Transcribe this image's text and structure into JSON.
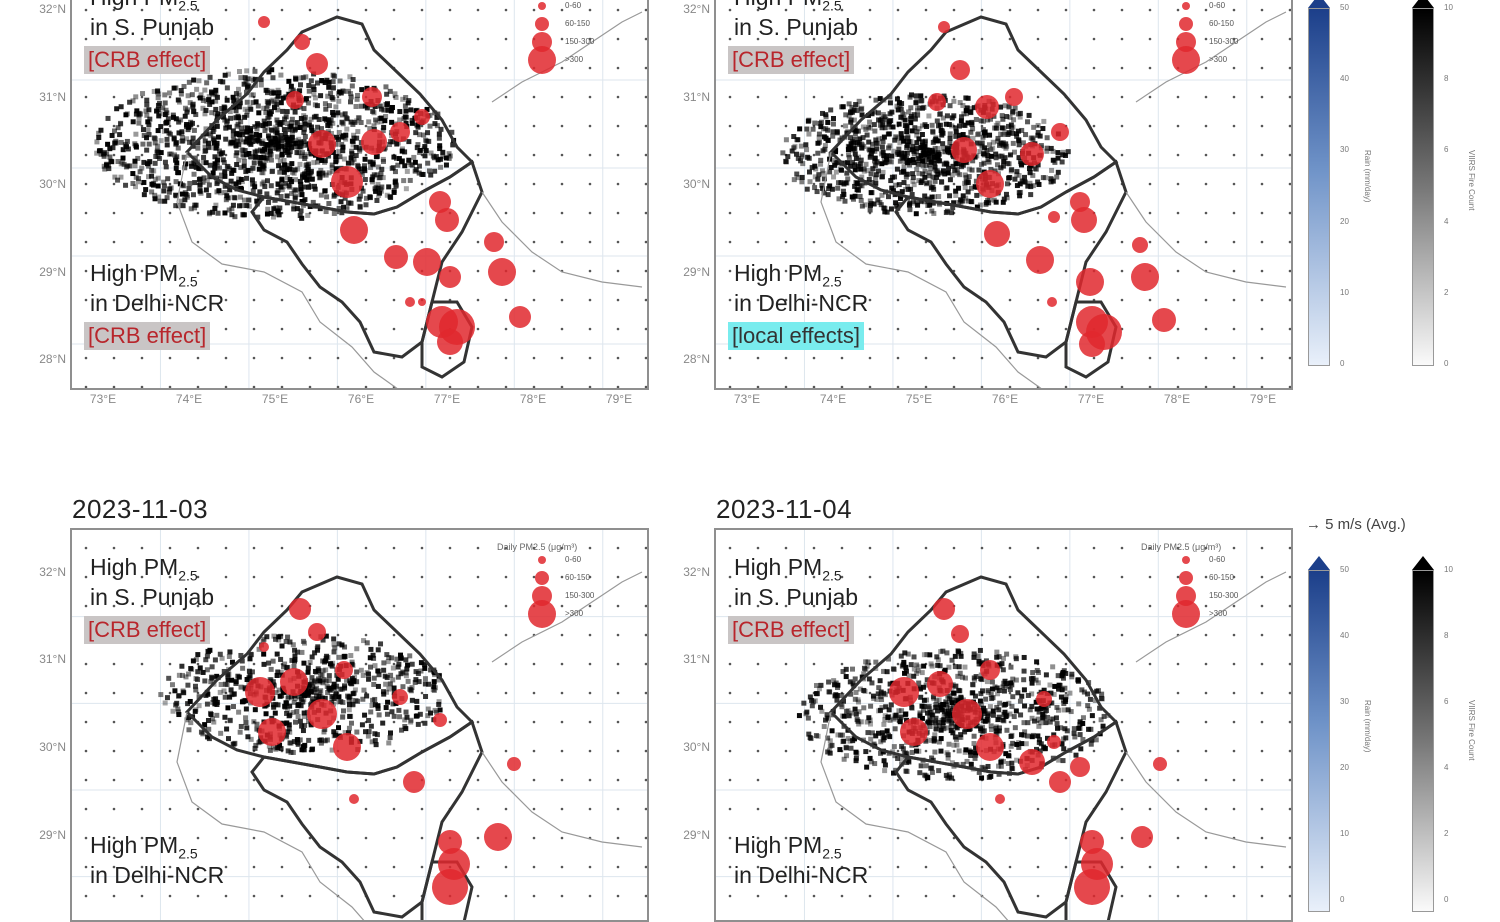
{
  "panels": [
    {
      "id": "p1",
      "date": "",
      "upper_label": "High PM",
      "upper_sub": "2.5",
      "upper_line2": "in S. Punjab",
      "upper_tag": "[CRB effect]",
      "upper_tag_style": "crb",
      "lower_label": "High PM",
      "lower_sub": "2.5",
      "lower_line2": "in Delhi-NCR",
      "lower_tag": "[CRB effect]",
      "lower_tag_style": "crb",
      "show_lon": true
    },
    {
      "id": "p2",
      "date": "",
      "upper_label": "High PM",
      "upper_sub": "2.5",
      "upper_line2": "in S. Punjab",
      "upper_tag": "[CRB effect]",
      "upper_tag_style": "crb",
      "lower_label": "High PM",
      "lower_sub": "2.5",
      "lower_line2": "in Delhi-NCR",
      "lower_tag": "[local effects]",
      "lower_tag_style": "local",
      "show_lon": true
    },
    {
      "id": "p3",
      "date": "2023-11-03",
      "upper_label": "High PM",
      "upper_sub": "2.5",
      "upper_line2": "in S. Punjab",
      "upper_tag": "[CRB effect]",
      "upper_tag_style": "crb",
      "lower_label": "High PM",
      "lower_sub": "2.5",
      "lower_line2": "in Delhi-NCR",
      "lower_tag": "",
      "lower_tag_style": "crb",
      "show_lon": false
    },
    {
      "id": "p4",
      "date": "2023-11-04",
      "upper_label": "High PM",
      "upper_sub": "2.5",
      "upper_line2": "in S. Punjab",
      "upper_tag": "[CRB effect]",
      "upper_tag_style": "crb",
      "lower_label": "High PM",
      "lower_sub": "2.5",
      "lower_line2": "in Delhi-NCR",
      "lower_tag": "",
      "lower_tag_style": "crb",
      "show_lon": false
    }
  ],
  "lat_labels_top": [
    "32°N",
    "31°N",
    "30°N",
    "29°N",
    "28°N"
  ],
  "lat_labels_bottom": [
    "32°N",
    "31°N",
    "30°N",
    "29°N"
  ],
  "lon_labels": [
    "73°E",
    "74°E",
    "75°E",
    "76°E",
    "77°E",
    "78°E",
    "79°E"
  ],
  "pm_legend": {
    "title": "Daily PM2.5 (μg/m³)",
    "items": [
      "0-60",
      "60-150",
      "150-300",
      ">300"
    ]
  },
  "wind_key": "→ 5 m/s (Avg.)",
  "colorbars": {
    "rain": {
      "ticks": [
        "50",
        "40",
        "30",
        "20",
        "10",
        "0"
      ],
      "label": "Rain (mm/day)",
      "color": "#1c3f8a"
    },
    "fire": {
      "ticks": [
        "10",
        "8",
        "6",
        "4",
        "2",
        "0"
      ],
      "label": "VIIRS Fire Count",
      "color": "#000000"
    }
  },
  "colors": {
    "pm_marker": "#e0282e",
    "crb_tag_bg": "#c9c5c5",
    "local_tag_bg": "#79ecee",
    "crb_tag_text": "#b8262c"
  }
}
